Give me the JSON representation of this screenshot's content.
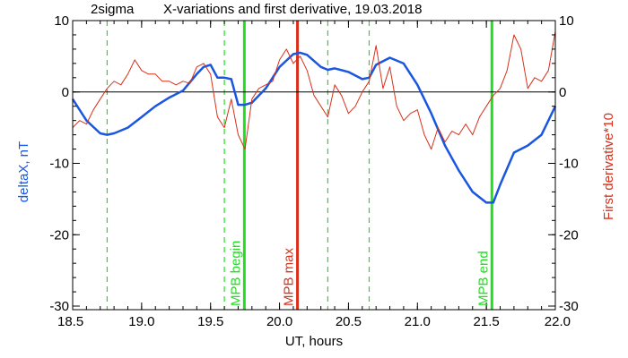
{
  "chart_data": {
    "type": "line",
    "title": "X-variations and first derivative, 19.03.2018",
    "title_prefix": "2sigma",
    "xlabel": "UT, hours",
    "ylabel_left": "deltaX, nT",
    "ylabel_right": "First derivative*10",
    "xlim": [
      18.5,
      22.0
    ],
    "ylim_left": [
      -30.5,
      10
    ],
    "ylim_right": [
      -30.5,
      10
    ],
    "x_ticks": [
      18.5,
      19.0,
      19.5,
      20.0,
      20.5,
      21.0,
      21.5,
      22.0
    ],
    "x_tick_labels": [
      "18.5",
      "19.0",
      "19.5",
      "20.0",
      "20.5",
      "21.0",
      "21.5",
      "22.0"
    ],
    "y_ticks": [
      10,
      0,
      -10,
      -20,
      -30
    ],
    "y_tick_labels": [
      "10",
      "0",
      "-10",
      "-20",
      "-30"
    ],
    "grid": false,
    "colors": {
      "deltaX": "#1a56e0",
      "derivative": "#d9301a",
      "markers": "#22dd22",
      "mpb_max": "#d9301a",
      "zero_line": "#000000"
    },
    "series": [
      {
        "name": "deltaX, nT",
        "axis": "left",
        "x": [
          18.5,
          18.6,
          18.7,
          18.75,
          18.8,
          18.9,
          19.0,
          19.1,
          19.2,
          19.3,
          19.4,
          19.45,
          19.5,
          19.55,
          19.6,
          19.65,
          19.7,
          19.75,
          19.8,
          19.9,
          20.0,
          20.1,
          20.15,
          20.2,
          20.3,
          20.35,
          20.4,
          20.5,
          20.6,
          20.65,
          20.7,
          20.8,
          20.9,
          21.0,
          21.1,
          21.2,
          21.3,
          21.4,
          21.5,
          21.55,
          21.6,
          21.7,
          21.8,
          21.9,
          22.0
        ],
        "y": [
          -1,
          -4,
          -5.8,
          -6,
          -5.8,
          -5,
          -3.5,
          -2,
          -0.8,
          0.2,
          2.5,
          3.5,
          3.8,
          2,
          2,
          1.8,
          -1.8,
          -1.8,
          -1.5,
          0.5,
          3.5,
          5.3,
          5.5,
          5.2,
          3.5,
          3.1,
          3.3,
          2.8,
          1.8,
          2.0,
          3.8,
          4.8,
          4.0,
          1.0,
          -3,
          -7.5,
          -11,
          -14,
          -15.5,
          -15.5,
          -13,
          -8.5,
          -7.5,
          -6,
          -2
        ]
      },
      {
        "name": "First derivative*10",
        "axis": "right",
        "x": [
          18.5,
          18.55,
          18.6,
          18.65,
          18.7,
          18.75,
          18.8,
          18.85,
          18.9,
          18.95,
          19.0,
          19.05,
          19.1,
          19.15,
          19.2,
          19.25,
          19.3,
          19.35,
          19.4,
          19.45,
          19.5,
          19.55,
          19.6,
          19.65,
          19.7,
          19.75,
          19.8,
          19.85,
          19.9,
          19.95,
          20.0,
          20.05,
          20.1,
          20.15,
          20.2,
          20.25,
          20.3,
          20.35,
          20.4,
          20.45,
          20.5,
          20.55,
          20.6,
          20.65,
          20.7,
          20.75,
          20.8,
          20.85,
          20.9,
          20.95,
          21.0,
          21.05,
          21.1,
          21.15,
          21.2,
          21.25,
          21.3,
          21.35,
          21.4,
          21.45,
          21.5,
          21.55,
          21.6,
          21.65,
          21.7,
          21.75,
          21.8,
          21.85,
          21.9,
          21.95,
          22.0
        ],
        "y": [
          -5,
          -4,
          -4.5,
          -2.5,
          -1,
          0.5,
          1.5,
          1,
          2.5,
          4.5,
          3,
          2.5,
          2.5,
          1.5,
          1.5,
          1,
          1.5,
          1.2,
          3.5,
          4,
          2.5,
          -3.5,
          -5,
          -1,
          -6,
          -8,
          -1,
          0.5,
          1,
          1.5,
          4.5,
          6,
          4,
          5,
          3,
          -0.5,
          -2,
          -3.5,
          1,
          -0.5,
          -3,
          -2,
          0,
          1.5,
          6.5,
          0.5,
          3.5,
          -2,
          -4,
          -3,
          -2.5,
          -6,
          -8,
          -5,
          -7,
          -5.5,
          -6,
          -4.5,
          -6,
          -3.5,
          -2,
          -0.5,
          0.5,
          3,
          8,
          6,
          0.5,
          2,
          1.5,
          3,
          8.5
        ]
      }
    ],
    "markers": [
      {
        "x": 18.75,
        "style": "dashed",
        "color": "#22dd22",
        "label": ""
      },
      {
        "x": 19.6,
        "style": "dashed",
        "color": "#22dd22",
        "label": ""
      },
      {
        "x": 19.745,
        "style": "solid",
        "color": "#22dd22",
        "label": "MPB begin"
      },
      {
        "x": 20.13,
        "style": "solid",
        "color": "#d9301a",
        "label": "MPB max"
      },
      {
        "x": 20.35,
        "style": "dashed",
        "color": "#22dd22",
        "label": ""
      },
      {
        "x": 20.65,
        "style": "dashed",
        "color": "#22dd22",
        "label": ""
      },
      {
        "x": 21.54,
        "style": "solid",
        "color": "#22dd22",
        "label": "MPB end"
      }
    ],
    "zero_line": 0
  }
}
